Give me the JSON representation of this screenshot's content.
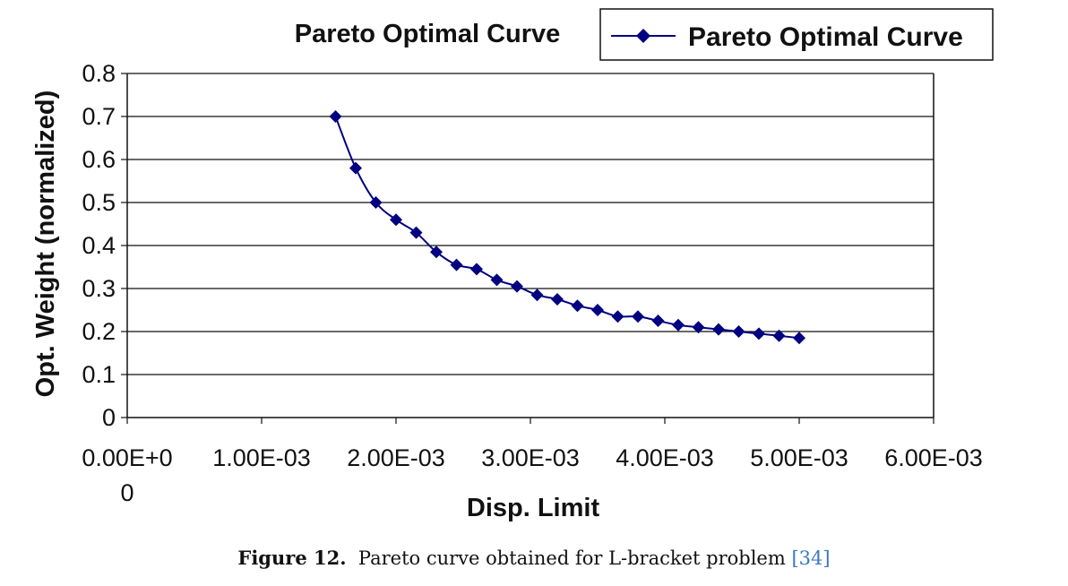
{
  "chart_data": {
    "type": "line",
    "title": "Pareto Optimal Curve",
    "xlabel": "Disp. Limit",
    "ylabel": "Opt. Weight (normalized)",
    "xlim": [
      0,
      0.006
    ],
    "ylim": [
      0,
      0.8
    ],
    "grid": "horizontal",
    "legend_placement": "top-right",
    "x_tick_labels": [
      {
        "value": 0.0,
        "label": "0.00E+0",
        "label2": "0"
      },
      {
        "value": 0.001,
        "label": "1.00E-03"
      },
      {
        "value": 0.002,
        "label": "2.00E-03"
      },
      {
        "value": 0.003,
        "label": "3.00E-03"
      },
      {
        "value": 0.004,
        "label": "4.00E-03"
      },
      {
        "value": 0.005,
        "label": "5.00E-03"
      },
      {
        "value": 0.006,
        "label": "6.00E-03"
      }
    ],
    "y_tick_labels": [
      {
        "value": 0,
        "label": "0"
      },
      {
        "value": 0.1,
        "label": "0.1"
      },
      {
        "value": 0.2,
        "label": "0.2"
      },
      {
        "value": 0.3,
        "label": "0.3"
      },
      {
        "value": 0.4,
        "label": "0.4"
      },
      {
        "value": 0.5,
        "label": "0.5"
      },
      {
        "value": 0.6,
        "label": "0.6"
      },
      {
        "value": 0.7,
        "label": "0.7"
      },
      {
        "value": 0.8,
        "label": "0.8"
      }
    ],
    "series": [
      {
        "name": "Pareto Optimal Curve",
        "color": "#000080",
        "marker": "diamond",
        "x": [
          0.00155,
          0.0017,
          0.00185,
          0.002,
          0.00215,
          0.0023,
          0.00245,
          0.0026,
          0.00275,
          0.0029,
          0.00305,
          0.0032,
          0.00335,
          0.0035,
          0.00365,
          0.0038,
          0.00395,
          0.0041,
          0.00425,
          0.0044,
          0.00455,
          0.0047,
          0.00485,
          0.005
        ],
        "y": [
          0.7,
          0.58,
          0.5,
          0.46,
          0.43,
          0.385,
          0.355,
          0.345,
          0.32,
          0.305,
          0.285,
          0.275,
          0.26,
          0.25,
          0.235,
          0.235,
          0.225,
          0.215,
          0.21,
          0.205,
          0.2,
          0.195,
          0.19,
          0.185
        ]
      }
    ]
  },
  "caption": {
    "label": "Figure 12.",
    "text": "Pareto curve obtained for L-bracket problem",
    "ref": "[34]"
  }
}
